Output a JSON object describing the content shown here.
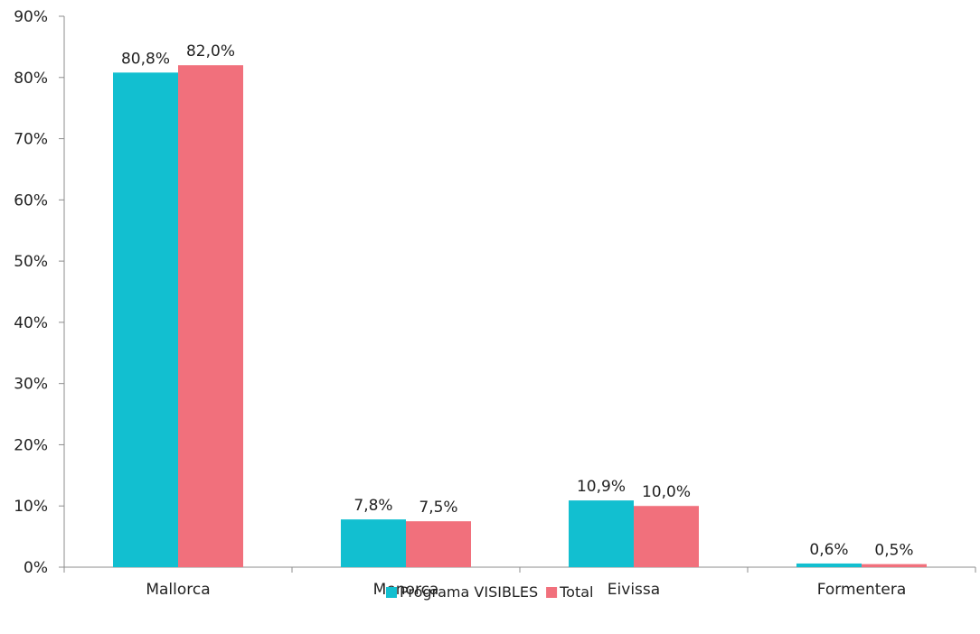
{
  "chart_data": {
    "type": "bar",
    "categories": [
      "Mallorca",
      "Menorca",
      "Eivissa",
      "Formentera"
    ],
    "series": [
      {
        "name": "Programa VISIBLES",
        "values": [
          80.8,
          7.8,
          10.9,
          0.6
        ],
        "labels": [
          "80,8%",
          "7,8%",
          "10,9%",
          "0,6%"
        ],
        "color": "#12BFD0"
      },
      {
        "name": "Total",
        "values": [
          82.0,
          7.5,
          10.0,
          0.5
        ],
        "labels": [
          "82,0%",
          "7,5%",
          "10,0%",
          "0,5%"
        ],
        "color": "#F1707C"
      }
    ],
    "ylim": [
      0,
      90
    ],
    "yticks": [
      0,
      10,
      20,
      30,
      40,
      50,
      60,
      70,
      80,
      90
    ],
    "ytick_labels": [
      "0%",
      "10%",
      "20%",
      "30%",
      "40%",
      "50%",
      "60%",
      "70%",
      "80%",
      "90%"
    ],
    "title": "",
    "xlabel": "",
    "ylabel": "",
    "grid": false,
    "legend_position": "bottom"
  }
}
